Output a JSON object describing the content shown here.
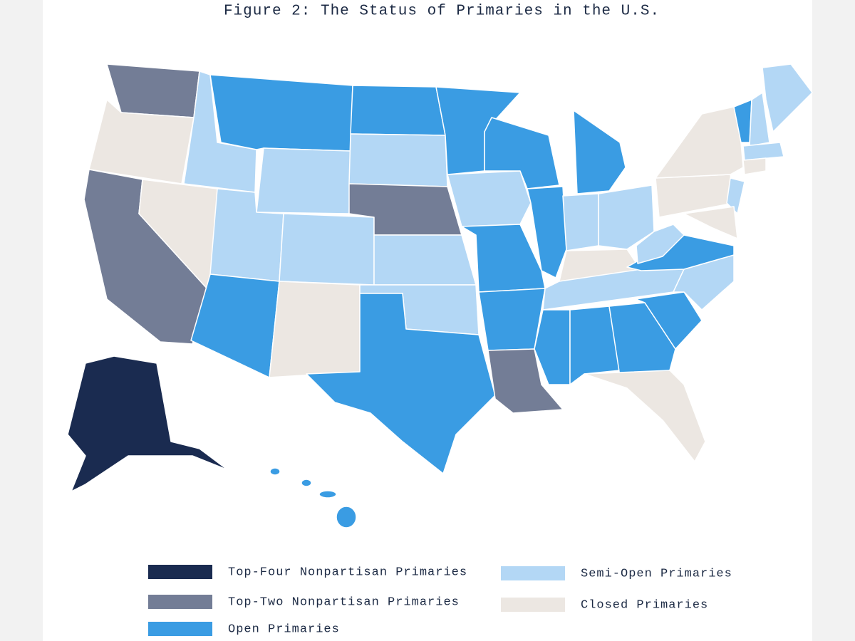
{
  "title": "Figure 2: The Status of Primaries in the U.S.",
  "legend": [
    {
      "label": "Top-Four Nonpartisan Primaries",
      "color": "#1a2b50"
    },
    {
      "label": "Top-Two Nonpartisan Primaries",
      "color": "#737d96"
    },
    {
      "label": "Open Primaries",
      "color": "#3a9ce3"
    },
    {
      "label": "Semi-Open Primaries",
      "color": "#b3d7f5"
    },
    {
      "label": "Closed Primaries",
      "color": "#ece7e2"
    }
  ]
}
